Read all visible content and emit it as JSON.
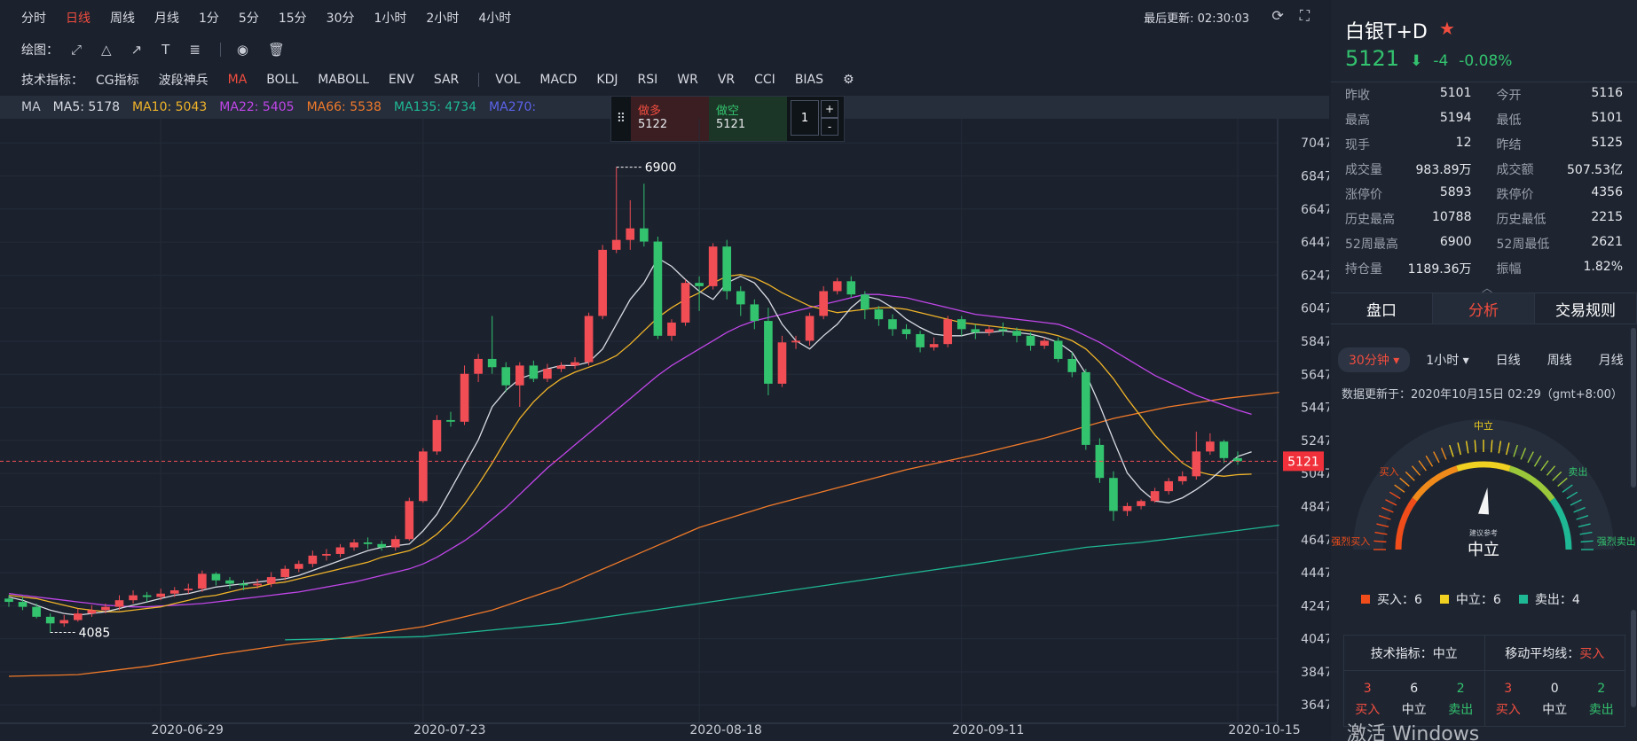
{
  "toolbar": {
    "periods": [
      "分时",
      "日线",
      "周线",
      "月线",
      "1分",
      "5分",
      "15分",
      "30分",
      "1小时",
      "2小时",
      "4小时"
    ],
    "active_period": "日线",
    "draw_label": "绘图：",
    "indicators_label": "技术指标：",
    "indicators_main": [
      "CG指标",
      "波段神兵",
      "MA",
      "BOLL",
      "MABOLL",
      "ENV",
      "SAR"
    ],
    "indicators_sub": [
      "VOL",
      "MACD",
      "KDJ",
      "RSI",
      "WR",
      "VR",
      "CCI",
      "BIAS"
    ],
    "active_indicator": "MA",
    "last_updated": "最后更新: 02:30:03"
  },
  "ma_bar": {
    "label": "MA",
    "items": [
      {
        "text": "MA5: 5178",
        "color": "#d8dbe2"
      },
      {
        "text": "MA10: 5043",
        "color": "#f0b429"
      },
      {
        "text": "MA22: 5405",
        "color": "#c046e8"
      },
      {
        "text": "MA66: 5538",
        "color": "#f07a2a"
      },
      {
        "text": "MA135: 4734",
        "color": "#1fb894"
      },
      {
        "text": "MA270:",
        "color": "#5a63e8"
      }
    ]
  },
  "trade": {
    "buy_label": "做多",
    "buy_price": "5122",
    "sell_label": "做空",
    "sell_price": "5121",
    "qty": "1",
    "plus": "+",
    "minus": "-"
  },
  "chart_data": {
    "type": "candlestick",
    "y_ticks": [
      7047,
      6847,
      6647,
      6447,
      6247,
      6047,
      5847,
      5647,
      5447,
      5247,
      5047,
      4847,
      4647,
      4447,
      4247,
      4047,
      3847,
      3647
    ],
    "ylim": [
      3600,
      7150
    ],
    "x_ticks": [
      "2020-06-29",
      "2020-07-23",
      "2020-08-18",
      "2020-09-11",
      "2020-10-15"
    ],
    "x_tick_index": [
      11,
      30,
      50,
      69,
      89
    ],
    "current_price": 5121,
    "high_label": "6900",
    "low_label": "4085",
    "high_index": 44,
    "low_index": 3,
    "candles": [
      [
        4290,
        4270,
        4310,
        4240
      ],
      [
        4270,
        4240,
        4300,
        4220
      ],
      [
        4240,
        4180,
        4260,
        4170
      ],
      [
        4180,
        4140,
        4200,
        4085
      ],
      [
        4140,
        4160,
        4190,
        4120
      ],
      [
        4160,
        4200,
        4230,
        4150
      ],
      [
        4200,
        4220,
        4250,
        4180
      ],
      [
        4220,
        4240,
        4260,
        4200
      ],
      [
        4240,
        4280,
        4310,
        4220
      ],
      [
        4280,
        4310,
        4340,
        4260
      ],
      [
        4310,
        4300,
        4330,
        4270
      ],
      [
        4300,
        4320,
        4350,
        4280
      ],
      [
        4320,
        4340,
        4360,
        4300
      ],
      [
        4340,
        4350,
        4380,
        4320
      ],
      [
        4350,
        4440,
        4460,
        4330
      ],
      [
        4440,
        4400,
        4450,
        4370
      ],
      [
        4400,
        4380,
        4420,
        4350
      ],
      [
        4380,
        4370,
        4400,
        4340
      ],
      [
        4370,
        4380,
        4410,
        4350
      ],
      [
        4380,
        4420,
        4450,
        4360
      ],
      [
        4420,
        4470,
        4490,
        4400
      ],
      [
        4470,
        4500,
        4520,
        4450
      ],
      [
        4500,
        4550,
        4580,
        4480
      ],
      [
        4550,
        4560,
        4590,
        4520
      ],
      [
        4560,
        4600,
        4620,
        4540
      ],
      [
        4600,
        4630,
        4650,
        4580
      ],
      [
        4630,
        4620,
        4660,
        4590
      ],
      [
        4620,
        4600,
        4640,
        4580
      ],
      [
        4600,
        4650,
        4670,
        4580
      ],
      [
        4650,
        4880,
        4900,
        4640
      ],
      [
        4880,
        5180,
        5200,
        4870
      ],
      [
        5180,
        5370,
        5400,
        5160
      ],
      [
        5370,
        5360,
        5420,
        5330
      ],
      [
        5360,
        5650,
        5700,
        5340
      ],
      [
        5650,
        5740,
        5770,
        5600
      ],
      [
        5740,
        5690,
        6000,
        5650
      ],
      [
        5690,
        5580,
        5720,
        5540
      ],
      [
        5580,
        5700,
        5720,
        5450
      ],
      [
        5700,
        5620,
        5730,
        5600
      ],
      [
        5620,
        5680,
        5710,
        5600
      ],
      [
        5680,
        5700,
        5720,
        5660
      ],
      [
        5700,
        5720,
        5750,
        5680
      ],
      [
        5720,
        6000,
        6020,
        5700
      ],
      [
        6000,
        6400,
        6430,
        5980
      ],
      [
        6400,
        6460,
        6900,
        6380
      ],
      [
        6460,
        6530,
        6700,
        6400
      ],
      [
        6530,
        6450,
        6800,
        6420
      ],
      [
        6450,
        5880,
        6480,
        5860
      ],
      [
        5880,
        5960,
        5980,
        5850
      ],
      [
        5960,
        6200,
        6220,
        5940
      ],
      [
        6200,
        6180,
        6240,
        6030
      ],
      [
        6180,
        6420,
        6440,
        6160
      ],
      [
        6420,
        6150,
        6460,
        6100
      ],
      [
        6150,
        6070,
        6180,
        6000
      ],
      [
        6070,
        5970,
        6100,
        5920
      ],
      [
        5970,
        5590,
        6050,
        5520
      ],
      [
        5590,
        5840,
        5880,
        5570
      ],
      [
        5840,
        5850,
        5880,
        5800
      ],
      [
        5850,
        6000,
        6020,
        5820
      ],
      [
        6000,
        6150,
        6180,
        5980
      ],
      [
        6150,
        6210,
        6230,
        6130
      ],
      [
        6210,
        6130,
        6240,
        6110
      ],
      [
        6130,
        6040,
        6150,
        5980
      ],
      [
        6040,
        5980,
        6060,
        5940
      ],
      [
        5980,
        5920,
        6010,
        5880
      ],
      [
        5920,
        5890,
        5950,
        5860
      ],
      [
        5890,
        5810,
        5910,
        5780
      ],
      [
        5810,
        5830,
        5870,
        5790
      ],
      [
        5830,
        5980,
        6000,
        5810
      ],
      [
        5980,
        5920,
        6000,
        5880
      ],
      [
        5920,
        5900,
        5950,
        5860
      ],
      [
        5900,
        5920,
        5940,
        5880
      ],
      [
        5920,
        5910,
        5960,
        5880
      ],
      [
        5910,
        5880,
        5930,
        5840
      ],
      [
        5880,
        5820,
        5900,
        5790
      ],
      [
        5820,
        5850,
        5870,
        5800
      ],
      [
        5850,
        5740,
        5870,
        5720
      ],
      [
        5740,
        5660,
        5780,
        5630
      ],
      [
        5660,
        5220,
        5680,
        5190
      ],
      [
        5220,
        5020,
        5260,
        4990
      ],
      [
        5020,
        4820,
        5060,
        4760
      ],
      [
        4820,
        4850,
        4870,
        4790
      ],
      [
        4850,
        4880,
        4890,
        4830
      ],
      [
        4880,
        4940,
        4960,
        4870
      ],
      [
        4940,
        5000,
        5020,
        4920
      ],
      [
        5000,
        5030,
        5060,
        4980
      ],
      [
        5030,
        5180,
        5300,
        5010
      ],
      [
        5180,
        5240,
        5290,
        5160
      ],
      [
        5240,
        5140,
        5250,
        5110
      ],
      [
        5140,
        5121,
        5180,
        5100
      ]
    ],
    "ma5": [
      4300,
      4280,
      4250,
      4220,
      4200,
      4190,
      4200,
      4210,
      4230,
      4250,
      4270,
      4290,
      4310,
      4320,
      4340,
      4360,
      4370,
      4380,
      4390,
      4400,
      4410,
      4430,
      4460,
      4490,
      4520,
      4550,
      4580,
      4600,
      4610,
      4620,
      4700,
      4800,
      4950,
      5100,
      5250,
      5450,
      5550,
      5620,
      5650,
      5680,
      5700,
      5700,
      5720,
      5800,
      5950,
      6100,
      6200,
      6350,
      6300,
      6220,
      6150,
      6100,
      6200,
      6240,
      6200,
      6100,
      5950,
      5850,
      5800,
      5880,
      5950,
      6050,
      6120,
      6100,
      6050,
      5980,
      5930,
      5890,
      5880,
      5880,
      5900,
      5900,
      5910,
      5900,
      5890,
      5870,
      5840,
      5780,
      5650,
      5460,
      5250,
      5050,
      4950,
      4880,
      4870,
      4900,
      4950,
      5010,
      5080,
      5150,
      5178
    ],
    "ma10": [
      4310,
      4300,
      4290,
      4270,
      4250,
      4230,
      4220,
      4210,
      4210,
      4220,
      4230,
      4240,
      4260,
      4280,
      4300,
      4310,
      4330,
      4350,
      4360,
      4380,
      4390,
      4410,
      4430,
      4450,
      4470,
      4490,
      4510,
      4540,
      4560,
      4580,
      4620,
      4680,
      4760,
      4860,
      4980,
      5110,
      5250,
      5380,
      5480,
      5560,
      5620,
      5660,
      5690,
      5720,
      5760,
      5830,
      5910,
      5990,
      6050,
      6100,
      6140,
      6200,
      6240,
      6250,
      6230,
      6190,
      6140,
      6100,
      6060,
      6040,
      6020,
      6030,
      6040,
      6050,
      6050,
      6040,
      6020,
      6000,
      5980,
      5960,
      5950,
      5940,
      5930,
      5920,
      5910,
      5900,
      5880,
      5850,
      5800,
      5720,
      5620,
      5500,
      5390,
      5280,
      5190,
      5110,
      5060,
      5040,
      5030,
      5040,
      5043
    ],
    "ma22": [
      4320,
      4310,
      4300,
      4290,
      4280,
      4270,
      4260,
      4250,
      4245,
      4240,
      4240,
      4245,
      4250,
      4255,
      4260,
      4270,
      4280,
      4290,
      4300,
      4310,
      4320,
      4330,
      4345,
      4360,
      4375,
      4390,
      4410,
      4430,
      4450,
      4470,
      4500,
      4540,
      4590,
      4640,
      4700,
      4770,
      4840,
      4920,
      5000,
      5080,
      5150,
      5220,
      5290,
      5360,
      5430,
      5500,
      5570,
      5640,
      5700,
      5750,
      5800,
      5850,
      5900,
      5940,
      5970,
      5990,
      6010,
      6030,
      6050,
      6070,
      6090,
      6110,
      6130,
      6130,
      6120,
      6110,
      6090,
      6070,
      6050,
      6030,
      6010,
      6000,
      5990,
      5980,
      5970,
      5960,
      5950,
      5920,
      5880,
      5840,
      5790,
      5740,
      5690,
      5640,
      5600,
      5560,
      5520,
      5490,
      5460,
      5430,
      5405
    ],
    "ma66": [
      null,
      null,
      null,
      null,
      null,
      null,
      null,
      null,
      null,
      null,
      null,
      null,
      null,
      null,
      null,
      null,
      null,
      null,
      null,
      null,
      null,
      null,
      null,
      null,
      null,
      null,
      null,
      null,
      null,
      null,
      null,
      null,
      null,
      null,
      null,
      null,
      null,
      null,
      null,
      null,
      null,
      null,
      null,
      null,
      null,
      null,
      null,
      null,
      null,
      null,
      null,
      null,
      null,
      null,
      null,
      null,
      null,
      null,
      null,
      null,
      null,
      null,
      null,
      null,
      null,
      null,
      null,
      null,
      null,
      null,
      null,
      null,
      null,
      null,
      null,
      null,
      null,
      null,
      null,
      null,
      null,
      null,
      null,
      null,
      null,
      null,
      null,
      null,
      null,
      null,
      null
    ],
    "ma66_line": [
      [
        0,
        3820
      ],
      [
        5,
        3830
      ],
      [
        10,
        3880
      ],
      [
        15,
        3950
      ],
      [
        20,
        4010
      ],
      [
        25,
        4060
      ],
      [
        30,
        4120
      ],
      [
        35,
        4220
      ],
      [
        40,
        4360
      ],
      [
        45,
        4540
      ],
      [
        50,
        4720
      ],
      [
        55,
        4850
      ],
      [
        60,
        4960
      ],
      [
        65,
        5070
      ],
      [
        70,
        5160
      ],
      [
        75,
        5260
      ],
      [
        80,
        5380
      ],
      [
        84,
        5450
      ],
      [
        88,
        5500
      ],
      [
        92,
        5538
      ]
    ],
    "ma135_line": [
      [
        20,
        4040
      ],
      [
        30,
        4060
      ],
      [
        40,
        4140
      ],
      [
        50,
        4260
      ],
      [
        60,
        4380
      ],
      [
        70,
        4500
      ],
      [
        78,
        4600
      ],
      [
        82,
        4630
      ],
      [
        86,
        4670
      ],
      [
        92,
        4734
      ]
    ]
  },
  "side": {
    "title": "白银T+D",
    "price": "5121",
    "change": "-4",
    "change_pct": "-0.08%",
    "quotes": [
      [
        {
          "label": "昨收",
          "value": "5101"
        },
        {
          "label": "今开",
          "value": "5116"
        }
      ],
      [
        {
          "label": "最高",
          "value": "5194"
        },
        {
          "label": "最低",
          "value": "5101"
        }
      ],
      [
        {
          "label": "现手",
          "value": "12"
        },
        {
          "label": "昨结",
          "value": "5125"
        }
      ],
      [
        {
          "label": "成交量",
          "value": "983.89万"
        },
        {
          "label": "成交额",
          "value": "507.53亿"
        }
      ],
      [
        {
          "label": "涨停价",
          "value": "5893"
        },
        {
          "label": "跌停价",
          "value": "4356"
        }
      ],
      [
        {
          "label": "历史最高",
          "value": "10788"
        },
        {
          "label": "历史最低",
          "value": "2215"
        }
      ],
      [
        {
          "label": "52周最高",
          "value": "6900"
        },
        {
          "label": "52周最低",
          "value": "2621"
        }
      ],
      [
        {
          "label": "持仓量",
          "value": "1189.36万"
        },
        {
          "label": "振幅",
          "value": "1.82%"
        }
      ]
    ],
    "tabs": [
      "盘口",
      "分析",
      "交易规则"
    ],
    "active_tab": "分析",
    "periods": [
      "30分钟 ▾",
      "1小时 ▾",
      "日线",
      "周线",
      "月线"
    ],
    "active_period": "30分钟 ▾",
    "data_updated": "数据更新于：2020年10月15日 02:29（gmt+8:00）",
    "gauge": {
      "labels": {
        "strong_buy": "强烈买入",
        "buy": "买入",
        "neutral_top": "中立",
        "sell": "卖出",
        "strong_sell": "强烈卖出"
      },
      "center_small": "建议参考",
      "center": "中立",
      "needle_fraction": 0.52
    },
    "legend": [
      {
        "label": "买入：6",
        "color": "#f04d1a"
      },
      {
        "label": "中立：6",
        "color": "#f0d020"
      },
      {
        "label": "卖出：4",
        "color": "#1fb894"
      }
    ],
    "summary": [
      {
        "head_label": "技术指标：",
        "head_value": "中立",
        "head_color": "#e6e8ec",
        "cells": [
          {
            "n": "3",
            "l": "买入",
            "c": "red"
          },
          {
            "n": "6",
            "l": "中立",
            "c": "white"
          },
          {
            "n": "2",
            "l": "卖出",
            "c": "green"
          }
        ]
      },
      {
        "head_label": "移动平均线：",
        "head_value": "买入",
        "head_color": "#f04d3f",
        "cells": [
          {
            "n": "3",
            "l": "买入",
            "c": "red"
          },
          {
            "n": "0",
            "l": "中立",
            "c": "white"
          },
          {
            "n": "2",
            "l": "卖出",
            "c": "green"
          }
        ]
      }
    ],
    "watermark": "激活 Windows"
  }
}
